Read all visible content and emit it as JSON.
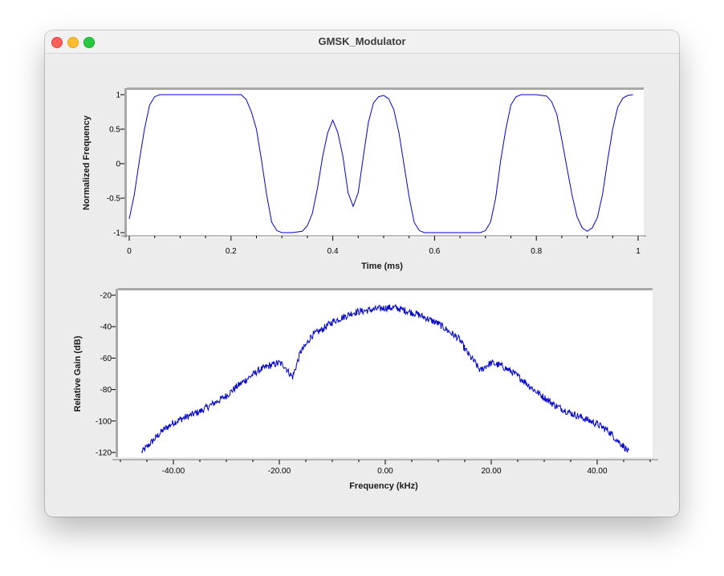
{
  "window": {
    "title": "GMSK_Modulator"
  },
  "chart_data": [
    {
      "type": "line",
      "title": "",
      "xlabel": "Time (ms)",
      "ylabel": "Normalized Frequency",
      "xlim": [
        0,
        1
      ],
      "ylim": [
        -1,
        1
      ],
      "xticks": [
        "0",
        "0.2",
        "0.4",
        "0.6",
        "0.8",
        "1"
      ],
      "yticks": [
        "1",
        "0.5",
        "0",
        "-0.5",
        "-1"
      ],
      "series": [
        {
          "color": "#0000cc",
          "x": [
            0,
            0.01,
            0.02,
            0.03,
            0.04,
            0.05,
            0.06,
            0.08,
            0.1,
            0.15,
            0.2,
            0.22,
            0.23,
            0.24,
            0.25,
            0.26,
            0.27,
            0.28,
            0.29,
            0.3,
            0.32,
            0.34,
            0.35,
            0.36,
            0.37,
            0.38,
            0.39,
            0.4,
            0.41,
            0.42,
            0.43,
            0.44,
            0.45,
            0.46,
            0.47,
            0.48,
            0.49,
            0.5,
            0.51,
            0.52,
            0.53,
            0.54,
            0.55,
            0.56,
            0.57,
            0.58,
            0.6,
            0.65,
            0.69,
            0.7,
            0.71,
            0.72,
            0.73,
            0.74,
            0.75,
            0.76,
            0.77,
            0.78,
            0.8,
            0.82,
            0.83,
            0.84,
            0.85,
            0.86,
            0.87,
            0.88,
            0.89,
            0.9,
            0.91,
            0.92,
            0.93,
            0.94,
            0.95,
            0.96,
            0.97,
            0.98,
            0.99
          ],
          "y": [
            -0.8,
            -0.45,
            0.05,
            0.5,
            0.85,
            0.97,
            1.0,
            1.0,
            1.0,
            1.0,
            1.0,
            1.0,
            0.93,
            0.75,
            0.5,
            0.05,
            -0.45,
            -0.85,
            -0.97,
            -1.0,
            -1.0,
            -0.98,
            -0.9,
            -0.72,
            -0.35,
            0.1,
            0.45,
            0.63,
            0.45,
            0.1,
            -0.42,
            -0.62,
            -0.42,
            0.1,
            0.6,
            0.88,
            0.97,
            0.99,
            0.94,
            0.78,
            0.45,
            -0.02,
            -0.48,
            -0.85,
            -0.97,
            -1.0,
            -1.0,
            -1.0,
            -1.0,
            -0.97,
            -0.85,
            -0.5,
            0.05,
            0.5,
            0.85,
            0.97,
            1.0,
            1.0,
            1.0,
            0.98,
            0.9,
            0.72,
            0.35,
            -0.05,
            -0.45,
            -0.77,
            -0.93,
            -0.98,
            -0.93,
            -0.78,
            -0.45,
            0.05,
            0.5,
            0.82,
            0.95,
            0.99,
            1.0
          ]
        }
      ]
    },
    {
      "type": "line",
      "title": "",
      "xlabel": "Frequency (kHz)",
      "ylabel": "Relative Gain (dB)",
      "xlim": [
        -50,
        50
      ],
      "ylim": [
        -120,
        -20
      ],
      "xticks": [
        "-40.00",
        "-20.00",
        "0.00",
        "20.00",
        "40.00"
      ],
      "yticks": [
        "-20",
        "-40",
        "-60",
        "-80",
        "-100",
        "-120"
      ],
      "series": [
        {
          "color": "#0000cc",
          "x": [
            -46,
            -44,
            -42,
            -40,
            -38,
            -35,
            -32,
            -30,
            -28,
            -26,
            -24,
            -22,
            -20,
            -19,
            -18,
            -17.5,
            -17,
            -16,
            -15,
            -14,
            -12,
            -10,
            -8,
            -6,
            -4,
            -2,
            0,
            2,
            4,
            6,
            8,
            10,
            12,
            14,
            15,
            16,
            17,
            17.5,
            18,
            19,
            20,
            22,
            24,
            26,
            28,
            30,
            32,
            35,
            38,
            40,
            42,
            44,
            45,
            46
          ],
          "y": [
            -120,
            -113,
            -106,
            -101,
            -98,
            -94,
            -88,
            -84,
            -78,
            -73,
            -68,
            -65,
            -63,
            -65,
            -70,
            -72,
            -67,
            -56,
            -52,
            -46,
            -42,
            -37,
            -34,
            -31,
            -30,
            -29,
            -28,
            -28,
            -30,
            -32,
            -35,
            -38,
            -43,
            -48,
            -54,
            -59,
            -63,
            -66,
            -68,
            -65,
            -63,
            -65,
            -69,
            -74,
            -80,
            -85,
            -90,
            -95,
            -99,
            -102,
            -106,
            -113,
            -116,
            -120
          ]
        }
      ]
    }
  ]
}
